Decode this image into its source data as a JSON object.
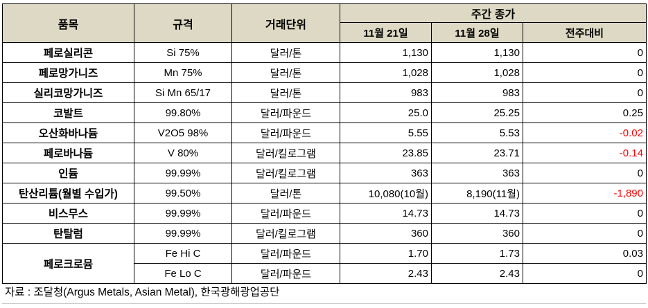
{
  "header": {
    "item": "품목",
    "spec": "규격",
    "unit": "거래단위",
    "weekly": "주간 종가",
    "date1": "11월 21일",
    "date2": "11월 28일",
    "change": "전주대비"
  },
  "rows": [
    {
      "name": "페로실리콘",
      "spec": "Si 75%",
      "unit": "달러/톤",
      "v1": "1,130",
      "v2": "1,130",
      "chg": "0",
      "neg": false
    },
    {
      "name": "페로망가니즈",
      "spec": "Mn 75%",
      "unit": "달러/톤",
      "v1": "1,028",
      "v2": "1,028",
      "chg": "0",
      "neg": false
    },
    {
      "name": "실리코망가니즈",
      "spec": "Si Mn 65/17",
      "unit": "달러/톤",
      "v1": "983",
      "v2": "983",
      "chg": "0",
      "neg": false
    },
    {
      "name": "코발트",
      "spec": "99.80%",
      "unit": "달러/파운드",
      "v1": "25.0",
      "v2": "25.25",
      "chg": "0.25",
      "neg": false
    },
    {
      "name": "오산화바나듐",
      "spec": "V2O5 98%",
      "unit": "달러/파운드",
      "v1": "5.55",
      "v2": "5.53",
      "chg": "-0.02",
      "neg": true
    },
    {
      "name": "페로바나듐",
      "spec": "V 80%",
      "unit": "달러/킬로그램",
      "v1": "23.85",
      "v2": "23.71",
      "chg": "-0.14",
      "neg": true
    },
    {
      "name": "인듐",
      "spec": "99.99%",
      "unit": "달러/킬로그램",
      "v1": "363",
      "v2": "363",
      "chg": "0",
      "neg": false
    },
    {
      "name": "탄산리튬(월별 수입가)",
      "spec": "99.50%",
      "unit": "달러/톤",
      "v1": "10,080(10월)",
      "v2": "8,190(11월)",
      "chg": "-1,890",
      "neg": true
    },
    {
      "name": "비스무스",
      "spec": "99.99%",
      "unit": "달러/파운드",
      "v1": "14.73",
      "v2": "14.73",
      "chg": "0",
      "neg": false
    },
    {
      "name": "탄탈럼",
      "spec": "99.99%",
      "unit": "달러/킬로그램",
      "v1": "360",
      "v2": "360",
      "chg": "0",
      "neg": false
    }
  ],
  "ferrochrome": {
    "name": "페로크로뮴",
    "sub": [
      {
        "spec": "Fe Hi C",
        "unit": "달러/파운드",
        "v1": "1.70",
        "v2": "1.73",
        "chg": "0.03"
      },
      {
        "spec": "Fe Lo C",
        "unit": "달러/파운드",
        "v1": "2.43",
        "v2": "2.43",
        "chg": "0"
      }
    ]
  },
  "footer": "자료 : 조달청(Argus Metals, Asian Metal), 한국광해광업공단",
  "colors": {
    "header_bg": "#ddd9c4",
    "negative": "#ff0000"
  }
}
